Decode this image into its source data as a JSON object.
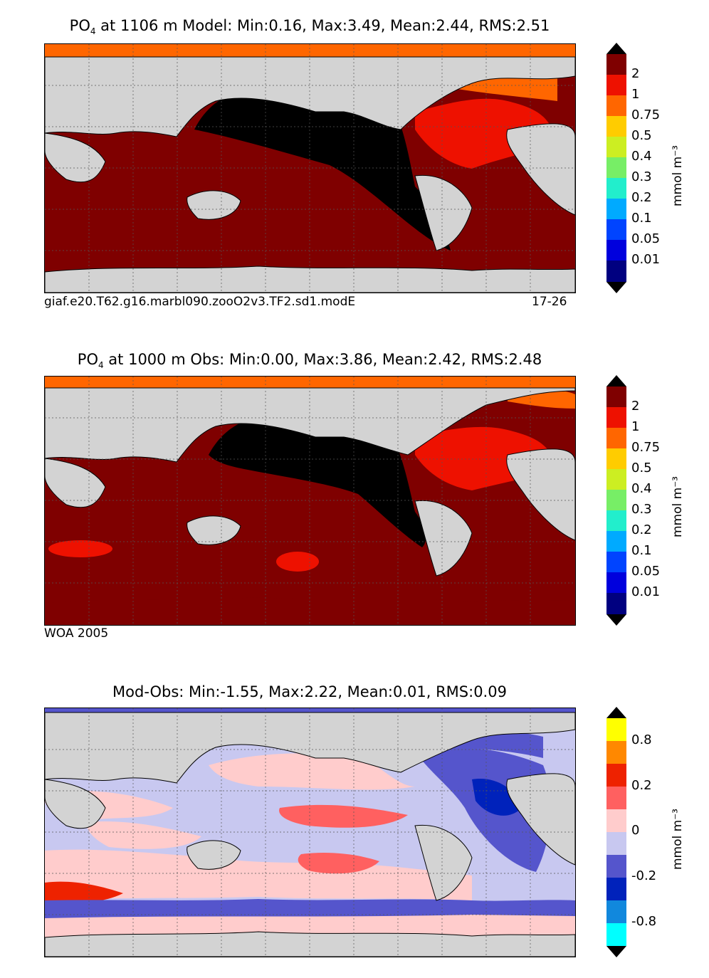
{
  "panels": [
    {
      "title_pre": "PO",
      "title_sub": "4",
      "title_post": "  at 1106 m Model: Min:0.16, Max:3.49, Mean:2.44, RMS:2.51",
      "caption_left": "giaf.e20.T62.g16.marbl090.zooO2v3.TF2.sd1.modE",
      "caption_right": "17-26",
      "colorbar": {
        "labels": [
          "2",
          "1",
          "0.75",
          "0.5",
          "0.4",
          "0.3",
          "0.2",
          "0.1",
          "0.05",
          "0.01"
        ],
        "colors": [
          "#7f0000",
          "#ee1100",
          "#ff6600",
          "#ffcc00",
          "#ccee22",
          "#77ee66",
          "#22eecc",
          "#00aaff",
          "#0044ff",
          "#0000dd",
          "#000080"
        ],
        "over_color": "#000000",
        "under_color": "#000000",
        "unit": "mmol m⁻³"
      }
    },
    {
      "title_pre": "PO",
      "title_sub": "4",
      "title_post": "  at 1000 m Obs: Min:0.00, Max:3.86, Mean:2.42, RMS:2.48",
      "caption_left": "WOA 2005",
      "caption_right": "",
      "colorbar": {
        "labels": [
          "2",
          "1",
          "0.75",
          "0.5",
          "0.4",
          "0.3",
          "0.2",
          "0.1",
          "0.05",
          "0.01"
        ],
        "colors": [
          "#7f0000",
          "#ee1100",
          "#ff6600",
          "#ffcc00",
          "#ccee22",
          "#77ee66",
          "#22eecc",
          "#00aaff",
          "#0044ff",
          "#0000dd",
          "#000080"
        ],
        "over_color": "#000000",
        "under_color": "#000000",
        "unit": "mmol m⁻³"
      }
    },
    {
      "title_pre": "Mod-Obs: Min:-1.55, Max:2.22, Mean:0.01, RMS:0.09",
      "title_sub": "",
      "title_post": "",
      "caption_left": "",
      "caption_right": "",
      "colorbar": {
        "labels": [
          "0.8",
          "0.2",
          "0",
          "-0.2",
          "-0.8"
        ],
        "colors": [
          "#ffff00",
          "#ff8800",
          "#ee2200",
          "#ff6060",
          "#ffcccc",
          "#c8c8f0",
          "#5555cc",
          "#0022bb",
          "#1188dd",
          "#00ffff"
        ],
        "over_color": "#000000",
        "under_color": "#000000",
        "unit": "mmol m⁻³"
      }
    }
  ],
  "map_colors": {
    "land": "#d3d3d3",
    "missing": "#ffffff",
    "grid": "#555555"
  }
}
